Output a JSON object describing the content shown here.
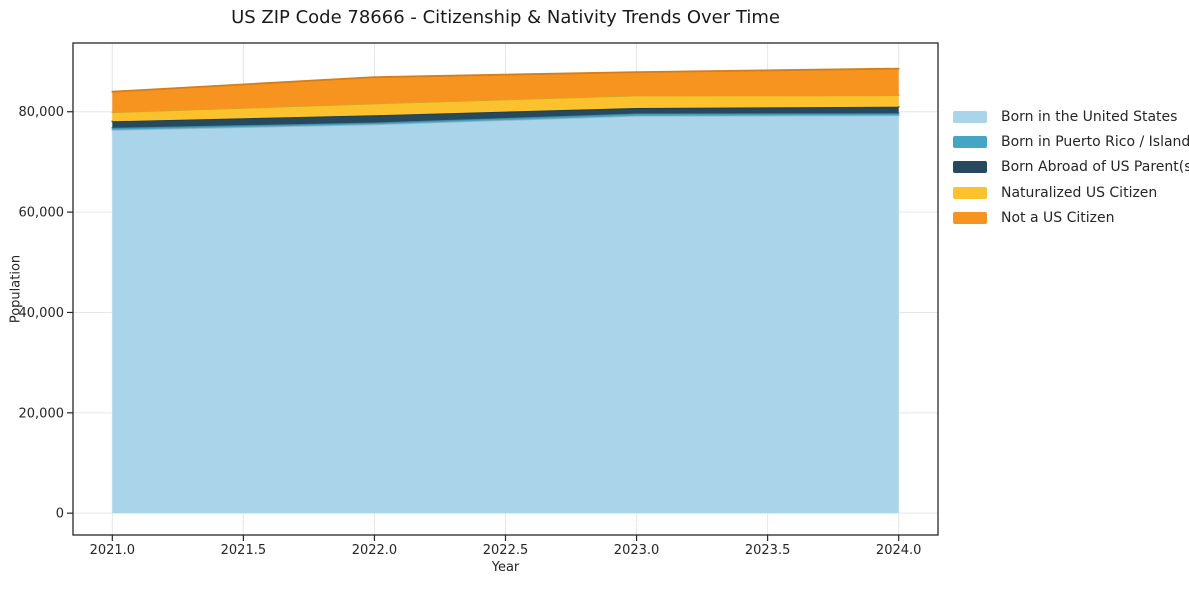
{
  "title": "US ZIP Code 78666 - Citizenship & Nativity Trends Over Time",
  "chart_data": {
    "type": "area",
    "stacked": true,
    "title": "US ZIP Code 78666 - Citizenship & Nativity Trends Over Time",
    "xlabel": "Year",
    "ylabel": "Population",
    "x": [
      2021,
      2022,
      2023,
      2024
    ],
    "series": [
      {
        "name": "Born in the United States",
        "color": "#a9d4e9",
        "values": [
          76400,
          77500,
          79200,
          79300
        ]
      },
      {
        "name": "Born in Puerto Rico / Islands",
        "color": "#46a5c2",
        "values": [
          400,
          350,
          450,
          400
        ]
      },
      {
        "name": "Born Abroad of US Parent(s)",
        "color": "#27495d",
        "values": [
          1300,
          1450,
          1100,
          1300
        ]
      },
      {
        "name": "Naturalized US Citizen",
        "color": "#fcc22d",
        "values": [
          1800,
          2350,
          2500,
          2300
        ]
      },
      {
        "name": "Not a US Citizen",
        "color": "#f79420",
        "values": [
          4100,
          5250,
          4650,
          5300
        ]
      }
    ],
    "totals": [
      84000,
      86900,
      87900,
      88600
    ],
    "xticks": [
      2021.0,
      2021.5,
      2022.0,
      2022.5,
      2023.0,
      2023.5,
      2024.0
    ],
    "yticks": [
      0,
      20000,
      40000,
      60000,
      80000
    ],
    "xlim": [
      2020.85,
      2024.15
    ],
    "ylim": [
      -4350,
      93700
    ],
    "grid": true,
    "legend_position": "right"
  },
  "colors": {
    "grid": "#e6e6e6",
    "spine": "#262626",
    "text": "#262626",
    "background": "#ffffff"
  }
}
